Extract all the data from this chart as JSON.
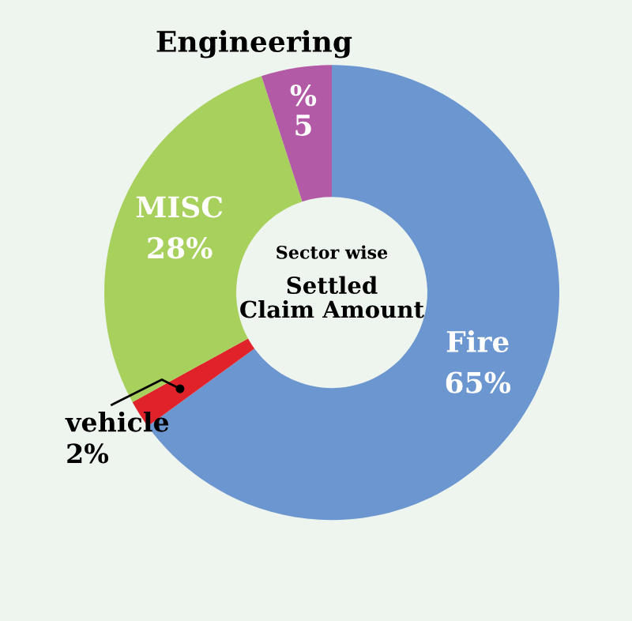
{
  "chart_data": {
    "type": "donut",
    "title": "Settled Claim Amount",
    "subtitle": "Sector wise",
    "categories": [
      "Fire",
      "vehicle",
      "MISC",
      "Engineering"
    ],
    "values": [
      65,
      2,
      28,
      5
    ],
    "colors": [
      "#6b96d0",
      "#e0222a",
      "#a8d05c",
      "#b35aa6"
    ],
    "value_labels": [
      "65%",
      "2%",
      "28%",
      "%\n5"
    ],
    "legend": false
  }
}
